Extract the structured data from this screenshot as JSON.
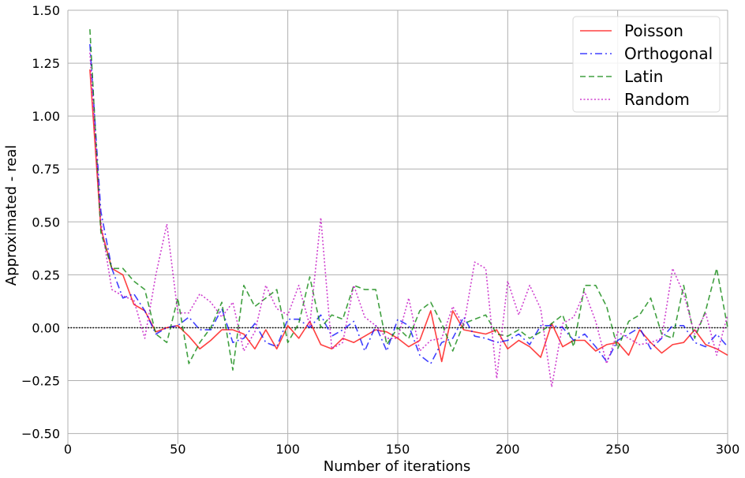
{
  "chart_data": {
    "type": "line",
    "xlabel": "Number of iterations",
    "ylabel": "Approximated - real",
    "xlim": [
      0,
      300
    ],
    "ylim": [
      -0.55,
      1.5
    ],
    "xticks": [
      0,
      50,
      100,
      150,
      200,
      250,
      300
    ],
    "xtick_labels": [
      "0",
      "50",
      "100",
      "150",
      "200",
      "250",
      "300"
    ],
    "yticks": [
      -0.5,
      -0.25,
      0.0,
      0.25,
      0.5,
      0.75,
      1.0,
      1.25,
      1.5
    ],
    "ytick_labels": [
      "−0.50",
      "−0.25",
      "0.00",
      "0.25",
      "0.50",
      "0.75",
      "1.00",
      "1.25",
      "1.50"
    ],
    "grid": true,
    "legend_position": "top-right",
    "reference_line": {
      "y": 0,
      "style": "dotted",
      "color": "#000000"
    },
    "x": [
      10,
      15,
      20,
      25,
      30,
      35,
      40,
      45,
      50,
      55,
      60,
      65,
      70,
      75,
      80,
      85,
      90,
      95,
      100,
      105,
      110,
      115,
      120,
      125,
      130,
      135,
      140,
      145,
      150,
      155,
      160,
      165,
      170,
      175,
      180,
      185,
      190,
      195,
      200,
      205,
      210,
      215,
      220,
      225,
      230,
      235,
      240,
      245,
      250,
      255,
      260,
      265,
      270,
      275,
      280,
      285,
      290,
      295,
      300
    ],
    "series": [
      {
        "name": "Poisson",
        "color": "#ff0000",
        "dash": "solid",
        "values": [
          1.22,
          0.47,
          0.28,
          0.25,
          0.11,
          0.08,
          -0.02,
          0.0,
          0.01,
          -0.04,
          -0.1,
          -0.06,
          -0.01,
          -0.01,
          -0.03,
          -0.1,
          -0.01,
          -0.1,
          0.01,
          -0.05,
          0.03,
          -0.08,
          -0.1,
          -0.05,
          -0.07,
          -0.04,
          -0.01,
          -0.02,
          -0.05,
          -0.09,
          -0.06,
          0.08,
          -0.16,
          0.08,
          -0.01,
          -0.02,
          -0.03,
          -0.01,
          -0.1,
          -0.06,
          -0.09,
          -0.14,
          0.02,
          -0.09,
          -0.06,
          -0.06,
          -0.11,
          -0.08,
          -0.07,
          -0.13,
          -0.01,
          -0.07,
          -0.12,
          -0.08,
          -0.07,
          -0.01,
          -0.08,
          -0.1,
          -0.13
        ]
      },
      {
        "name": "Orthogonal",
        "color": "#0000ff",
        "dash": "dashdot",
        "values": [
          1.34,
          0.55,
          0.28,
          0.14,
          0.16,
          0.08,
          -0.03,
          0.0,
          0.01,
          0.05,
          -0.01,
          -0.01,
          0.09,
          -0.07,
          -0.05,
          0.02,
          -0.07,
          -0.09,
          0.04,
          0.04,
          0.0,
          0.06,
          -0.04,
          -0.01,
          0.03,
          -0.11,
          0.01,
          -0.11,
          0.04,
          0.01,
          -0.13,
          -0.17,
          -0.07,
          -0.05,
          0.05,
          -0.04,
          -0.05,
          -0.07,
          -0.06,
          -0.03,
          -0.08,
          0.01,
          0.01,
          0.0,
          -0.06,
          -0.03,
          -0.09,
          -0.16,
          -0.06,
          -0.03,
          0.0,
          -0.1,
          -0.05,
          0.01,
          0.01,
          -0.07,
          -0.09,
          -0.03,
          -0.09
        ]
      },
      {
        "name": "Latin",
        "color": "#008000",
        "dash": "dashed",
        "values": [
          1.41,
          0.45,
          0.28,
          0.28,
          0.22,
          0.18,
          -0.03,
          -0.07,
          0.14,
          -0.17,
          -0.07,
          0.0,
          0.12,
          -0.2,
          0.2,
          0.1,
          0.14,
          0.18,
          -0.07,
          0.02,
          0.24,
          0.0,
          0.06,
          0.04,
          0.2,
          0.18,
          0.18,
          -0.08,
          0.0,
          -0.05,
          0.08,
          0.12,
          0.02,
          -0.11,
          0.02,
          0.04,
          0.06,
          -0.03,
          -0.04,
          -0.01,
          -0.05,
          -0.02,
          0.02,
          0.06,
          -0.09,
          0.2,
          0.2,
          0.1,
          -0.1,
          0.03,
          0.06,
          0.14,
          -0.03,
          -0.05,
          0.2,
          -0.05,
          0.08,
          0.28,
          0.0
        ]
      },
      {
        "name": "Random",
        "color": "#bf00bf",
        "dash": "dotted",
        "values": [
          1.3,
          0.5,
          0.18,
          0.15,
          0.13,
          -0.05,
          0.25,
          0.49,
          0.07,
          0.07,
          0.16,
          0.12,
          0.05,
          0.12,
          -0.11,
          -0.02,
          0.2,
          0.09,
          0.06,
          0.2,
          0.01,
          0.52,
          -0.1,
          -0.07,
          0.2,
          0.05,
          0.01,
          -0.05,
          -0.05,
          0.14,
          -0.11,
          -0.06,
          -0.05,
          0.1,
          0.01,
          0.31,
          0.28,
          -0.24,
          0.22,
          0.06,
          0.2,
          0.09,
          -0.28,
          0.02,
          0.05,
          0.17,
          0.03,
          -0.17,
          -0.02,
          -0.05,
          -0.08,
          -0.07,
          -0.05,
          0.28,
          0.16,
          -0.03,
          0.07,
          -0.13,
          0.06
        ]
      }
    ]
  }
}
